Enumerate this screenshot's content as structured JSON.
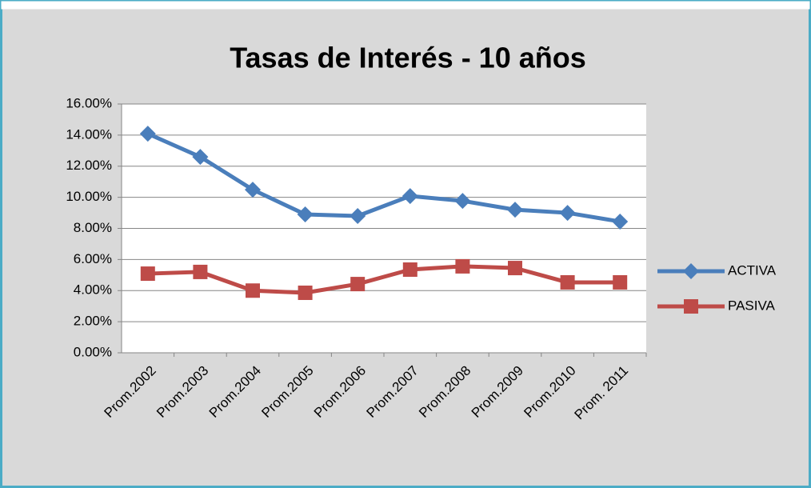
{
  "chart_data": {
    "type": "line",
    "title": "Tasas de Interés - 10 años",
    "categories": [
      "Prom.2002",
      "Prom.2003",
      "Prom.2004",
      "Prom.2005",
      "Prom.2006",
      "Prom.2007",
      "Prom.2008",
      "Prom.2009",
      "Prom.2010",
      "Prom. 2011"
    ],
    "series": [
      {
        "name": "ACTIVA",
        "color": "#4a7ebb",
        "marker": "diamond",
        "values": [
          14.09,
          12.6,
          10.49,
          8.9,
          8.8,
          10.08,
          9.77,
          9.2,
          9.0,
          8.44
        ]
      },
      {
        "name": "PASIVA",
        "color": "#be4b48",
        "marker": "square",
        "values": [
          5.09,
          5.2,
          4.0,
          3.86,
          4.42,
          5.35,
          5.56,
          5.45,
          4.53,
          4.53
        ]
      }
    ],
    "ylim": [
      0,
      16
    ],
    "yticks": [
      {
        "value": 0,
        "label": "0.00%"
      },
      {
        "value": 2,
        "label": "2.00%"
      },
      {
        "value": 4,
        "label": "4.00%"
      },
      {
        "value": 6,
        "label": "6.00%"
      },
      {
        "value": 8,
        "label": "8.00%"
      },
      {
        "value": 10,
        "label": "10.00%"
      },
      {
        "value": 12,
        "label": "12.00%"
      },
      {
        "value": 14,
        "label": "14.00%"
      },
      {
        "value": 16,
        "label": "16.00%"
      }
    ],
    "grid": true,
    "legend": "right"
  }
}
